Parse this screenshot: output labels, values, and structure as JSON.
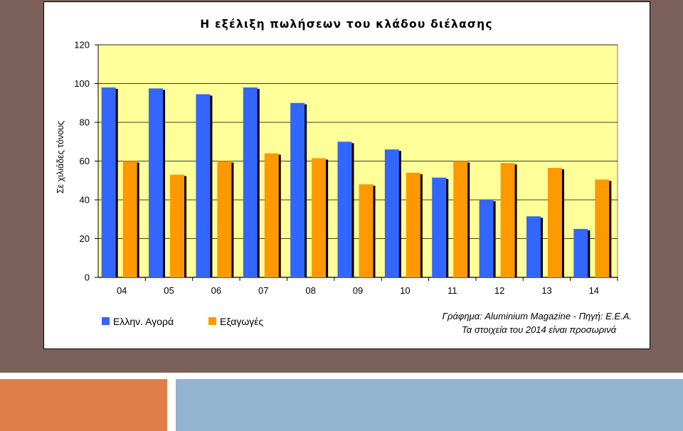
{
  "colors": {
    "background": "#7a6058",
    "accent_orange": "#de7f4a",
    "accent_blue": "#93b3cf",
    "plot_area": "#ffff99",
    "series_greek_market": "#3366ff",
    "series_exports": "#ff9900"
  },
  "chart_data": {
    "type": "bar",
    "title": "Η εξέλιξη πωλήσεων του κλάδου διέλασης",
    "xlabel": "",
    "ylabel": "Σε χιλιάδες τόνους",
    "ylim": [
      0,
      120
    ],
    "yticks": [
      0,
      20,
      40,
      60,
      80,
      100,
      120
    ],
    "grid": true,
    "legend_position": "bottom-left",
    "categories": [
      "04",
      "05",
      "06",
      "07",
      "08",
      "09",
      "10",
      "11",
      "12",
      "13",
      "14"
    ],
    "series": [
      {
        "name": "Ελλην. Αγορά",
        "values": [
          98,
          97.5,
          94.5,
          98,
          90,
          70,
          66,
          51.5,
          40,
          31.5,
          25
        ]
      },
      {
        "name": "Εξαγωγές",
        "values": [
          60,
          53,
          60,
          64,
          61.5,
          48,
          54,
          60,
          59,
          56.5,
          50.5
        ]
      }
    ],
    "annotations": [
      "Γράφημα: Aluminium Magazine - Πηγή: Ε.Ε.Α.",
      "Τα στοιχεία του 2014 είναι προσωρινά"
    ]
  }
}
